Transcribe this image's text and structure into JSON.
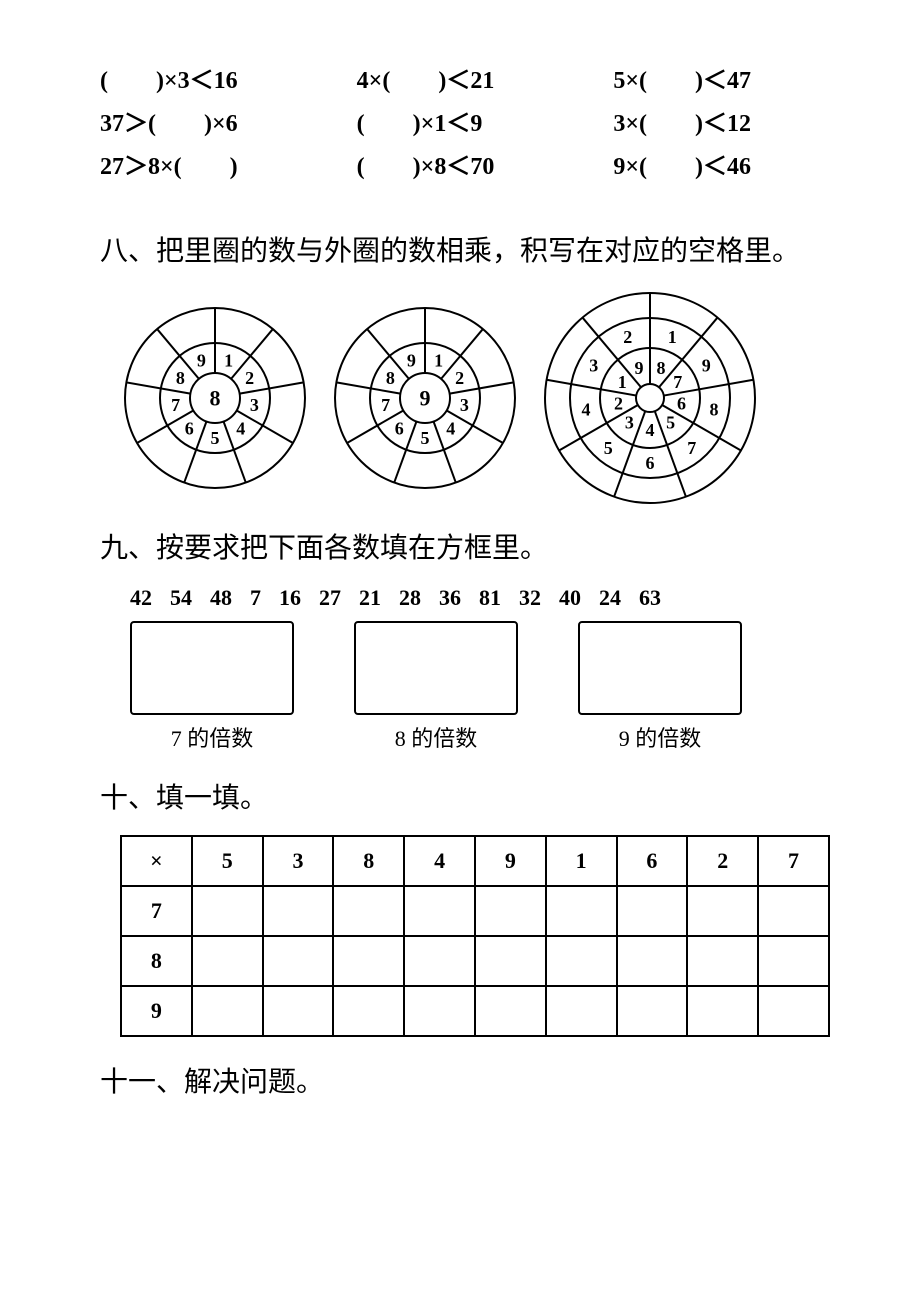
{
  "inequalities": [
    "(　　)×3＜16",
    "4×(　　)＜21",
    "5×(　　)＜47",
    "37＞(　　)×6",
    "(　　)×1＜9",
    "3×(　　)＜12",
    "27＞8×(　　)",
    "(　　)×8＜70",
    "9×(　　)＜46"
  ],
  "section8": {
    "title": "八、把里圈的数与外圈的数相乘，积写在对应的空格里。",
    "wheels": [
      {
        "type": "simple",
        "radius_outer": 90,
        "radius_mid": 55,
        "radius_inner": 25,
        "center_label": "8",
        "labels": [
          "1",
          "2",
          "3",
          "4",
          "5",
          "6",
          "7",
          "8",
          "9"
        ],
        "segments": 9,
        "stroke": "#000000",
        "stroke_width": 2,
        "font_size": 18
      },
      {
        "type": "simple",
        "radius_outer": 90,
        "radius_mid": 55,
        "radius_inner": 25,
        "center_label": "9",
        "labels": [
          "1",
          "2",
          "3",
          "4",
          "5",
          "6",
          "7",
          "8",
          "9"
        ],
        "segments": 9,
        "stroke": "#000000",
        "stroke_width": 2,
        "font_size": 18
      },
      {
        "type": "double",
        "radius_outer": 105,
        "radius_ring2": 80,
        "radius_ring1": 50,
        "radius_inner": 14,
        "center_label": "",
        "inner_labels": [
          "8",
          "7",
          "6",
          "5",
          "4",
          "3",
          "2",
          "1",
          "9"
        ],
        "outer_labels": [
          "1",
          "9",
          "8",
          "7",
          "6",
          "5",
          "4",
          "3",
          "2"
        ],
        "segments": 9,
        "stroke": "#000000",
        "stroke_width": 2,
        "font_size": 18
      }
    ]
  },
  "section9": {
    "title": "九、按要求把下面各数填在方框里。",
    "numbers": [
      "42",
      "54",
      "48",
      "7",
      "16",
      "27",
      "21",
      "28",
      "36",
      "81",
      "32",
      "40",
      "24",
      "63"
    ],
    "box_labels": [
      "7 的倍数",
      "8 的倍数",
      "9 的倍数"
    ]
  },
  "section10": {
    "title": "十、填一填。",
    "table": {
      "header": [
        "×",
        "5",
        "3",
        "8",
        "4",
        "9",
        "1",
        "6",
        "2",
        "7"
      ],
      "row_heads": [
        "7",
        "8",
        "9"
      ]
    }
  },
  "section11": {
    "title": "十一、解决问题。"
  }
}
